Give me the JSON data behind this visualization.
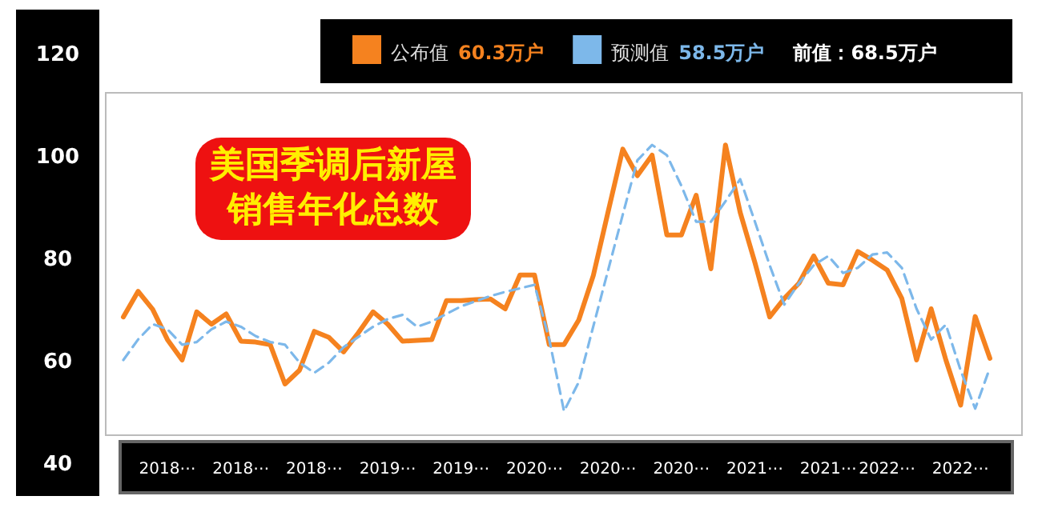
{
  "chart_data": {
    "type": "line",
    "title": "美国季调后新屋销售年化总数",
    "categories": [
      null,
      null,
      null,
      "2018⋯",
      null,
      null,
      null,
      null,
      "2018⋯",
      null,
      null,
      null,
      null,
      "2018⋯",
      null,
      null,
      null,
      null,
      "2019⋯",
      null,
      null,
      null,
      null,
      "2019⋯",
      null,
      null,
      null,
      null,
      "2020⋯",
      null,
      null,
      null,
      null,
      "2020⋯",
      null,
      null,
      null,
      null,
      "2020⋯",
      null,
      null,
      null,
      null,
      "2021⋯",
      null,
      null,
      null,
      null,
      "2021⋯",
      null,
      null,
      null,
      "2022⋯",
      null,
      null,
      null,
      null,
      "2022⋯",
      null,
      null
    ],
    "series": [
      {
        "name": "公布值",
        "color": "#f5821f",
        "line_style": "solid",
        "values": [
          68.4,
          73.4,
          69.9,
          64,
          60,
          69.4,
          67,
          69,
          63.7,
          63.5,
          63,
          55.3,
          58,
          65.6,
          64.4,
          61.6,
          65.3,
          69.4,
          67,
          63.7,
          63.8,
          64,
          71.6,
          71.6,
          71.8,
          71.9,
          70,
          76.6,
          76.6,
          63,
          63,
          67.8,
          76.5,
          88.9,
          101.2,
          96,
          100,
          84.4,
          84.4,
          92.2,
          77.8,
          102,
          88.8,
          79,
          68.4,
          72,
          75,
          80.3,
          75,
          74.7,
          81.2,
          79.5,
          77.6,
          72,
          60,
          70,
          60,
          51.2,
          68.5,
          60.3
        ]
      },
      {
        "name": "预测值",
        "color": "#7db8ea",
        "line_style": "dashed",
        "values": [
          60,
          64,
          67,
          66,
          63,
          63.5,
          66,
          67.5,
          66.5,
          64.7,
          63.5,
          63,
          59.5,
          57.5,
          59.5,
          62.5,
          64.5,
          66.5,
          68,
          68.8,
          66.5,
          67.5,
          69,
          70.5,
          71.5,
          72.5,
          73.3,
          74,
          74.7,
          64,
          50,
          55.7,
          66.6,
          77.5,
          88.4,
          99,
          102,
          100,
          94,
          87,
          87,
          91,
          95.3,
          87,
          78.5,
          70.8,
          75,
          78.5,
          80.3,
          77,
          78,
          80.6,
          81,
          78,
          70,
          64,
          66.9,
          58,
          50.5,
          58.5
        ]
      }
    ],
    "ylim": [
      40,
      120
    ],
    "yticks": [
      40,
      60,
      80,
      100,
      120
    ],
    "legend": "top",
    "annotations": [
      "60.3万户",
      "58.5万户",
      "前值：68.5万户"
    ]
  }
}
